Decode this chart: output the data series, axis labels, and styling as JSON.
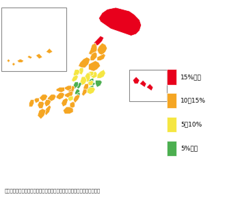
{
  "title": "",
  "source_text": "資料）国土交通省「空き地等の活用に関する検討会とりまとめ参考資料」",
  "legend_items": [
    {
      "label": "15%以上",
      "color": "#e8001c"
    },
    {
      "label": "10～15%",
      "color": "#f5a623"
    },
    {
      "label": "5～10%",
      "color": "#f5e642"
    },
    {
      "label": "5%未満",
      "color": "#4caf50"
    }
  ],
  "bg_color": "#ffffff",
  "map_bg": "#ffffff",
  "border_color": "#aaaaaa",
  "prefecture_colors": {
    "hokkaido": "#e8001c",
    "aomori": "#e8001c",
    "iwate": "#f5a623",
    "miyagi": "#f5a623",
    "akita": "#f5a623",
    "yamagata": "#f5a623",
    "fukushima": "#f5a623",
    "ibaraki": "#f5e642",
    "tochigi": "#f5e642",
    "gunma": "#f5e642",
    "saitama": "#4caf50",
    "chiba": "#4caf50",
    "tokyo": "#4caf50",
    "kanagawa": "#4caf50",
    "niigata": "#f5a623",
    "toyama": "#f5e642",
    "ishikawa": "#f5e642",
    "fukui": "#f5e642",
    "yamanashi": "#f5e642",
    "nagano": "#f5e642",
    "gifu": "#f5e642",
    "shizuoka": "#f5e642",
    "aichi": "#f5a623",
    "mie": "#f5a623",
    "shiga": "#4caf50",
    "kyoto": "#4caf50",
    "osaka": "#4caf50",
    "hyogo": "#f5a623",
    "nara": "#4caf50",
    "wakayama": "#f5a623",
    "tottori": "#f5a623",
    "shimane": "#f5a623",
    "okayama": "#f5a623",
    "hiroshima": "#f5a623",
    "yamaguchi": "#f5a623",
    "tokushima": "#f5a623",
    "kagawa": "#f5e642",
    "ehime": "#f5a623",
    "kochi": "#f5a623",
    "fukuoka": "#f5a623",
    "saga": "#f5a623",
    "nagasaki": "#f5a623",
    "kumamoto": "#f5a623",
    "oita": "#f5a623",
    "miyazaki": "#f5a623",
    "kagoshima": "#f5a623",
    "okinawa": "#f5a623"
  },
  "figsize": [
    3.32,
    2.88
  ],
  "dpi": 100
}
